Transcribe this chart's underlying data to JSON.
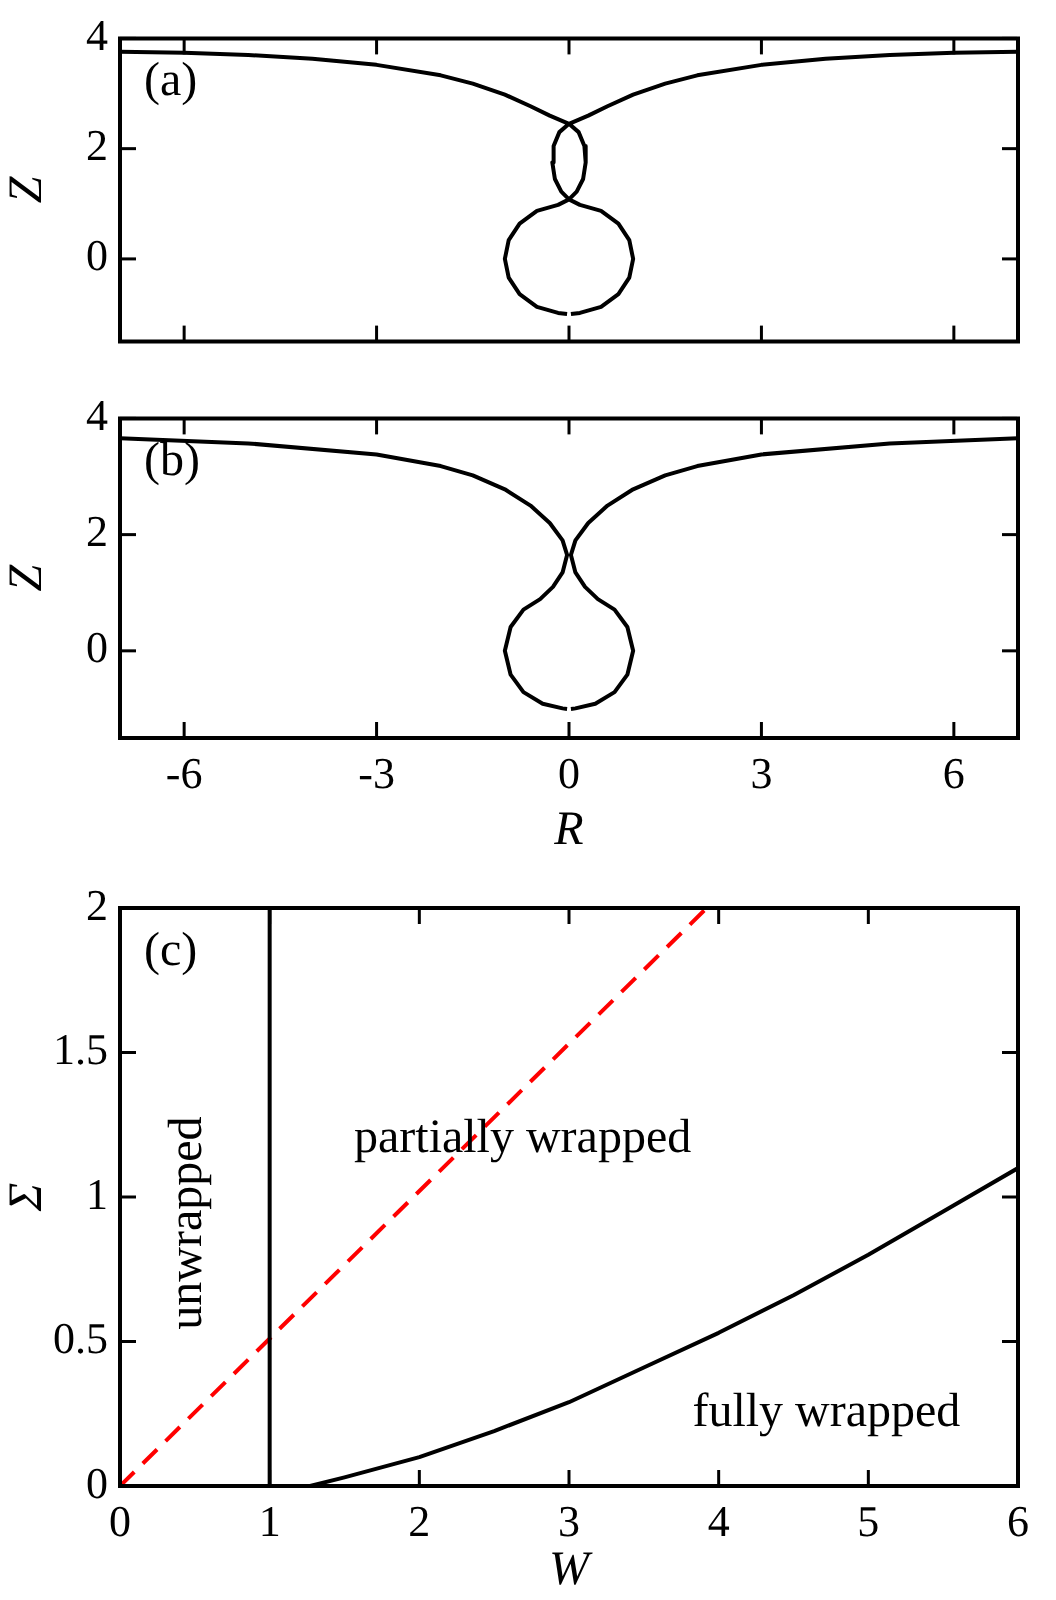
{
  "chart_data": [
    {
      "type": "line",
      "ylabel": "Z",
      "xlim": [
        -7,
        7
      ],
      "ylim": [
        -1.5,
        4
      ],
      "xticks": [
        -6,
        -3,
        0,
        3,
        6
      ],
      "yticks": [
        0,
        2,
        4
      ],
      "tick_labels": "y",
      "annotations": [
        "(a)"
      ],
      "series": [
        {
          "color": "#000000",
          "x": [
            -7,
            -6,
            -5,
            -4,
            -3,
            -2,
            -1.5,
            -1,
            -0.6,
            -0.3,
            0,
            0.15,
            0.24,
            0.26,
            0.22,
            0.12,
            0,
            -0.17,
            -0.5,
            -0.77,
            -0.94,
            -1,
            -0.94,
            -0.77,
            -0.5,
            -0.17,
            -0.03,
            0,
            0.03,
            0.17,
            0.5,
            0.77,
            0.94,
            1,
            0.94,
            0.77,
            0.5,
            0.17,
            0,
            -0.12,
            -0.22,
            -0.26,
            -0.24,
            -0.15,
            0,
            0.3,
            0.6,
            1,
            1.5,
            2,
            3,
            4,
            5,
            6,
            7
          ],
          "values": [
            3.76,
            3.74,
            3.7,
            3.63,
            3.52,
            3.33,
            3.18,
            2.98,
            2.77,
            2.6,
            2.45,
            2.3,
            2.05,
            1.75,
            1.45,
            1.22,
            1.08,
            0.98,
            0.87,
            0.64,
            0.34,
            0,
            -0.34,
            -0.64,
            -0.87,
            -0.98,
            -1,
            null,
            -1,
            -0.98,
            -0.87,
            -0.64,
            -0.34,
            0,
            0.34,
            0.64,
            0.87,
            0.98,
            1.08,
            1.22,
            1.45,
            1.75,
            2.05,
            2.3,
            2.45,
            2.6,
            2.77,
            2.98,
            3.18,
            3.33,
            3.52,
            3.63,
            3.7,
            3.74,
            3.76
          ]
        }
      ]
    },
    {
      "type": "line",
      "xlabel": "R",
      "ylabel": "Z",
      "xlim": [
        -7,
        7
      ],
      "ylim": [
        -1.5,
        4
      ],
      "xticks": [
        -6,
        -3,
        0,
        3,
        6
      ],
      "yticks": [
        0,
        2,
        4
      ],
      "annotations": [
        "(b)"
      ],
      "series": [
        {
          "color": "#000000",
          "x": [
            -7,
            -5,
            -3,
            -2,
            -1.5,
            -1,
            -0.6,
            -0.3,
            -0.1,
            -0.03,
            -0.1,
            -0.25,
            -0.45,
            -0.71,
            -0.91,
            -1,
            -0.91,
            -0.71,
            -0.41,
            -0.1,
            -0.03,
            0,
            0.03,
            0.1,
            0.41,
            0.71,
            0.91,
            1,
            0.91,
            0.71,
            0.45,
            0.25,
            0.1,
            0.03,
            0.1,
            0.3,
            0.6,
            1,
            1.5,
            2,
            3,
            5,
            7
          ],
          "values": [
            3.66,
            3.57,
            3.38,
            3.18,
            3.02,
            2.78,
            2.5,
            2.2,
            1.9,
            1.65,
            1.35,
            1.1,
            0.89,
            0.71,
            0.41,
            0,
            -0.41,
            -0.71,
            -0.91,
            -0.99,
            -1,
            null,
            -1,
            -0.99,
            -0.91,
            -0.71,
            -0.41,
            0,
            0.41,
            0.71,
            0.89,
            1.1,
            1.35,
            1.65,
            1.9,
            2.2,
            2.5,
            2.78,
            3.02,
            3.18,
            3.38,
            3.57,
            3.66
          ]
        }
      ]
    },
    {
      "type": "line",
      "xlabel": "W",
      "ylabel": "Σ",
      "xlim": [
        0,
        6
      ],
      "ylim": [
        0,
        2
      ],
      "xticks": [
        0,
        1,
        2,
        3,
        4,
        5,
        6
      ],
      "yticks": [
        0,
        0.5,
        1,
        1.5,
        2
      ],
      "annotations": [
        "(c)",
        "unwrapped",
        "partially wrapped",
        "fully wrapped"
      ],
      "ref_lines": [
        {
          "axis": "x",
          "value": 1,
          "color": "#000000"
        }
      ],
      "series": [
        {
          "color": "#ff0000",
          "line_style": "dashed",
          "x": [
            0,
            3.92
          ],
          "values": [
            0,
            2
          ]
        },
        {
          "color": "#000000",
          "x": [
            1.27,
            1.5,
            2,
            2.5,
            3,
            3.5,
            4,
            4.5,
            5,
            5.5,
            6
          ],
          "values": [
            0,
            0.03,
            0.1,
            0.19,
            0.29,
            0.41,
            0.53,
            0.66,
            0.8,
            0.95,
            1.1
          ]
        }
      ]
    }
  ]
}
